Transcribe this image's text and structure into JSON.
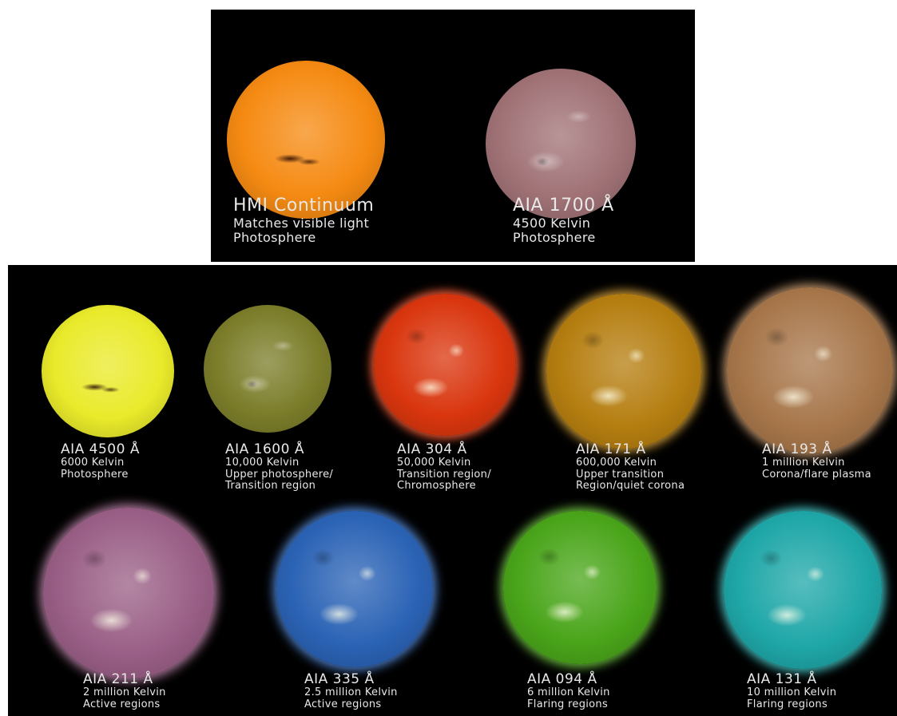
{
  "top_row": [
    {
      "title": "HMI Continuum",
      "lines": [
        "Matches visible light",
        "Photosphere"
      ],
      "color": "#f58a12"
    },
    {
      "title": "AIA 1700 Å",
      "lines": [
        "4500 Kelvin",
        "Photosphere"
      ],
      "color": "#a07276"
    }
  ],
  "grid": [
    {
      "title": "AIA 4500 Å",
      "lines": [
        "6000 Kelvin",
        "Photosphere"
      ],
      "color": "#e9ea2a"
    },
    {
      "title": "AIA 1600 Å",
      "lines": [
        "10,000 Kelvin",
        "Upper photosphere/",
        "Transition region"
      ],
      "color": "#7b7d2a"
    },
    {
      "title": "AIA 304 Å",
      "lines": [
        "50,000 Kelvin",
        "Transition region/",
        "Chromosphere"
      ],
      "color": "#d9360e"
    },
    {
      "title": "AIA 171 Å",
      "lines": [
        "600,000 Kelvin",
        "Upper transition",
        "Region/quiet corona"
      ],
      "color": "#b57e10"
    },
    {
      "title": "AIA 193 Å",
      "lines": [
        "1 million Kelvin",
        "Corona/flare plasma"
      ],
      "color": "#a7764a"
    },
    {
      "title": "AIA 211 Å",
      "lines": [
        "2 million Kelvin",
        "Active regions"
      ],
      "color": "#9a5f86"
    },
    {
      "title": "AIA 335 Å",
      "lines": [
        "2.5 million Kelvin",
        "Active regions"
      ],
      "color": "#2b63b5"
    },
    {
      "title": "AIA 094 Å",
      "lines": [
        "6 million Kelvin",
        "Flaring regions"
      ],
      "color": "#4aa51a"
    },
    {
      "title": "AIA 131 Å",
      "lines": [
        "10 million Kelvin",
        "Flaring regions"
      ],
      "color": "#1fa7a8"
    }
  ]
}
